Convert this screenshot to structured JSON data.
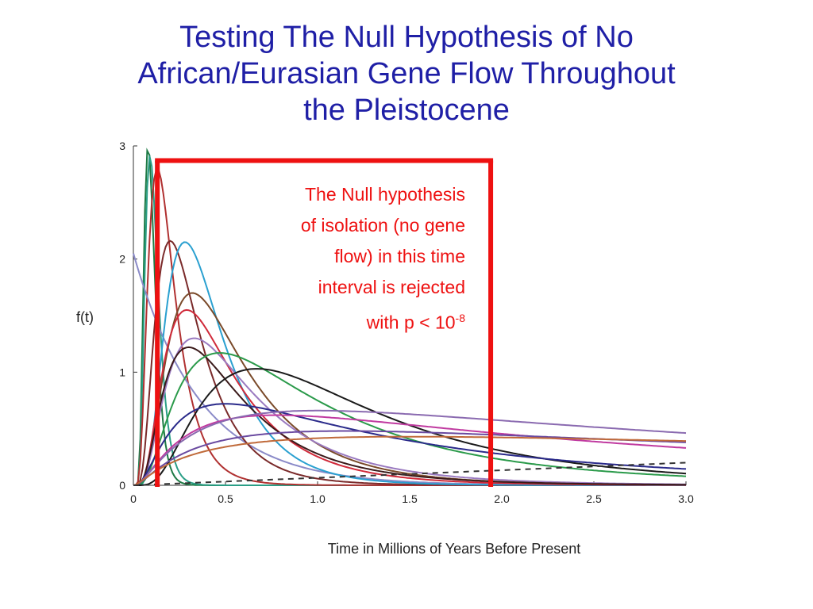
{
  "slide": {
    "title_lines": [
      "Testing The Null Hypothesis of No",
      "African/Eurasian Gene Flow Throughout",
      "the Pleistocene"
    ]
  },
  "annotation": {
    "lines": [
      "The Null hypothesis",
      "of isolation (no gene",
      "flow) in this time",
      "interval is rejected"
    ],
    "last_line_prefix": "with p < 10",
    "exponent": "-8",
    "color": "#ee1111"
  },
  "chart_data": {
    "type": "line",
    "title": "",
    "xlabel": "Time in Millions of Years Before Present",
    "ylabel": "f(t)",
    "xlim": [
      0,
      3.0
    ],
    "ylim": [
      0,
      3
    ],
    "x_ticks": [
      "0",
      "0.5",
      "1.0",
      "1.5",
      "2.0",
      "2.5",
      "3.0"
    ],
    "y_ticks": [
      "0",
      "1",
      "2",
      "3"
    ],
    "grid": false,
    "legend": "none",
    "interval": {
      "from": 0.13,
      "to": 1.94,
      "bracket_y": 2.87,
      "color": "#ee1111"
    },
    "series": [
      {
        "color": "#1e7a45",
        "peak_x": 0.08,
        "peak_y": 3.0,
        "spread": 0.38
      },
      {
        "color": "#2a9e86",
        "peak_x": 0.09,
        "peak_y": 2.92,
        "spread": 0.4
      },
      {
        "color": "#b03030",
        "peak_x": 0.13,
        "peak_y": 2.8,
        "spread": 0.55
      },
      {
        "color": "#8a8ac8",
        "peak_x": 0.0,
        "peak_y": 2.05,
        "spread": 0.8
      },
      {
        "color": "#7a2a2a",
        "peak_x": 0.2,
        "peak_y": 2.16,
        "spread": 0.6
      },
      {
        "color": "#2aa0d0",
        "peak_x": 0.28,
        "peak_y": 2.15,
        "spread": 0.55
      },
      {
        "color": "#7a4a2a",
        "peak_x": 0.32,
        "peak_y": 1.7,
        "spread": 0.65
      },
      {
        "color": "#d02a3a",
        "peak_x": 0.29,
        "peak_y": 1.55,
        "spread": 0.65
      },
      {
        "color": "#9a7ac0",
        "peak_x": 0.33,
        "peak_y": 1.3,
        "spread": 0.7
      },
      {
        "color": "#3a1a1a",
        "peak_x": 0.3,
        "peak_y": 1.22,
        "spread": 0.7
      },
      {
        "color": "#2a9a4a",
        "peak_x": 0.47,
        "peak_y": 1.17,
        "spread": 0.8
      },
      {
        "color": "#1a1a1a",
        "peak_x": 0.67,
        "peak_y": 1.03,
        "spread": 0.7
      },
      {
        "color": "#2a2a8a",
        "peak_x": 0.5,
        "peak_y": 0.72,
        "spread": 1.0
      },
      {
        "color": "#c03aa0",
        "peak_x": 0.78,
        "peak_y": 0.62,
        "spread": 1.2
      },
      {
        "color": "#8a6ab0",
        "peak_x": 1.0,
        "peak_y": 0.66,
        "spread": 1.3
      },
      {
        "color": "#6a4aa0",
        "peak_x": 1.15,
        "peak_y": 0.48,
        "spread": 1.4
      },
      {
        "color": "#c06a3a",
        "peak_x": 1.5,
        "peak_y": 0.43,
        "spread": 1.6
      },
      {
        "color": "#333333",
        "dashed": true,
        "linear": true,
        "start_y": 0.0,
        "end_y": 0.2
      }
    ]
  }
}
